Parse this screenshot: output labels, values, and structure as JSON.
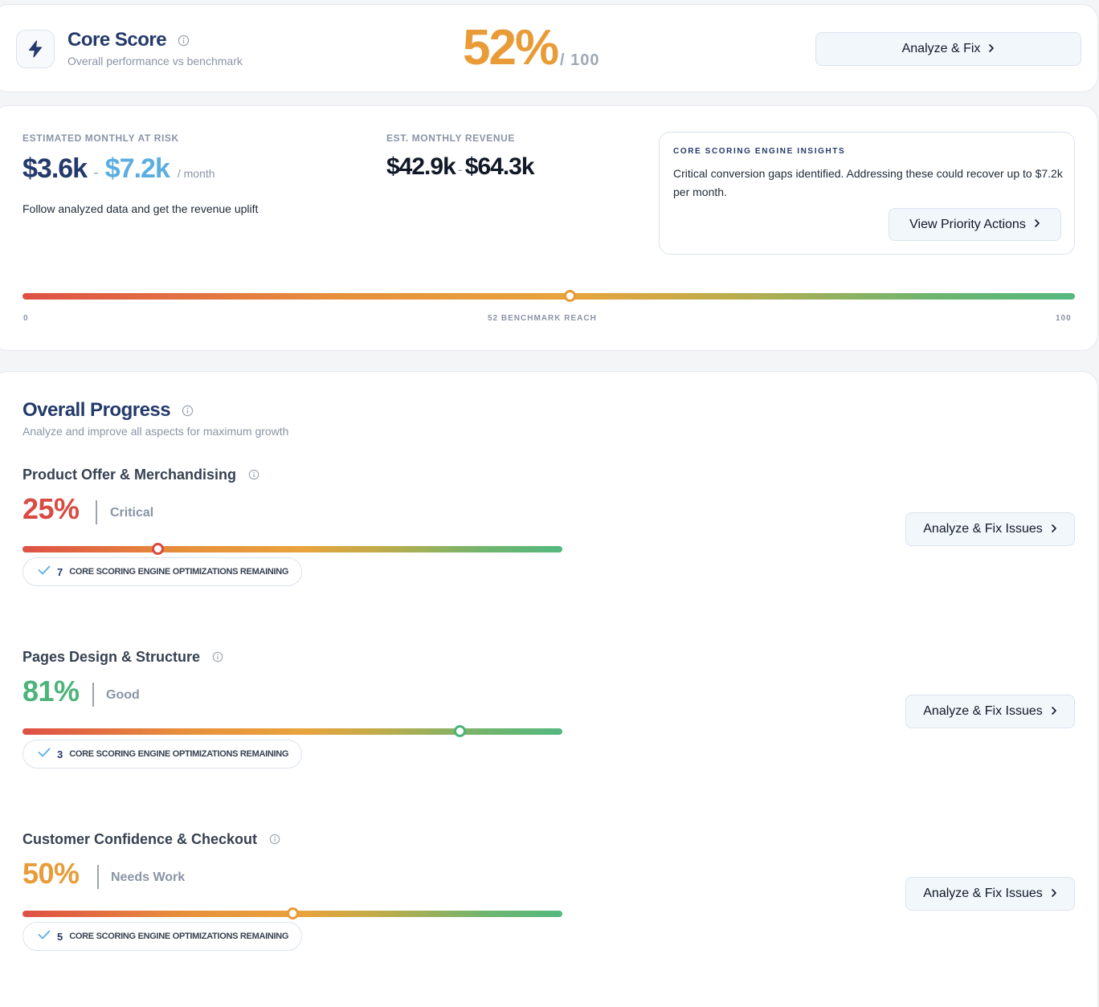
{
  "colors": {
    "brand_navy": "#243a6b",
    "accent_orange": "#e89b37",
    "critical_red": "#d94a43",
    "good_green": "#4cb37a",
    "accent_blue": "#5aaee0"
  },
  "core_score": {
    "title": "Core Score",
    "subtitle": "Overall performance vs benchmark",
    "value": "52%",
    "max": "/ 100",
    "button_label": "Analyze & Fix",
    "icons": {
      "main": "lightning-bolt-icon",
      "info": "info-icon",
      "chevron": "chevron-right-icon"
    }
  },
  "revenue": {
    "at_risk_label": "Estimated Monthly At Risk",
    "at_risk_low": "$3.6k",
    "at_risk_high": "$7.2k",
    "at_risk_unit": "/ month",
    "follow_text": "Follow analyzed data and get the revenue uplift",
    "monthly_label": "Est. Monthly Revenue",
    "monthly_low": "$42.9k",
    "monthly_high": "$64.3k",
    "range_separator": "-"
  },
  "insights": {
    "title": "Core Scoring Engine Insights",
    "text": "Critical conversion gaps identified. Addressing these could recover up to $7.2k per month.",
    "button_label": "View Priority Actions"
  },
  "benchmark_gauge": {
    "value": 52,
    "min_label": "0",
    "mid_label": "52 BENCHMARK REACH",
    "max_label": "100"
  },
  "overall_progress": {
    "title": "Overall Progress",
    "subtitle": "Analyze and improve all aspects for maximum growth",
    "sections": [
      {
        "title": "Product Offer & Merchandising",
        "percent_label": "25%",
        "value": 25,
        "status": "Critical",
        "color": "#d94a43",
        "remaining_count": "7",
        "remaining_text": "Core Scoring Engine Optimizations Remaining",
        "button_label": "Analyze & Fix Issues"
      },
      {
        "title": "Pages Design & Structure",
        "percent_label": "81%",
        "value": 81,
        "status": "Good",
        "color": "#4cb37a",
        "remaining_count": "3",
        "remaining_text": "Core Scoring Engine Optimizations Remaining",
        "button_label": "Analyze & Fix Issues"
      },
      {
        "title": "Customer Confidence & Checkout",
        "percent_label": "50%",
        "value": 50,
        "status": "Needs Work",
        "color": "#e89b37",
        "remaining_count": "5",
        "remaining_text": "Core Scoring Engine Optimizations Remaining",
        "button_label": "Analyze & Fix Issues"
      }
    ]
  }
}
